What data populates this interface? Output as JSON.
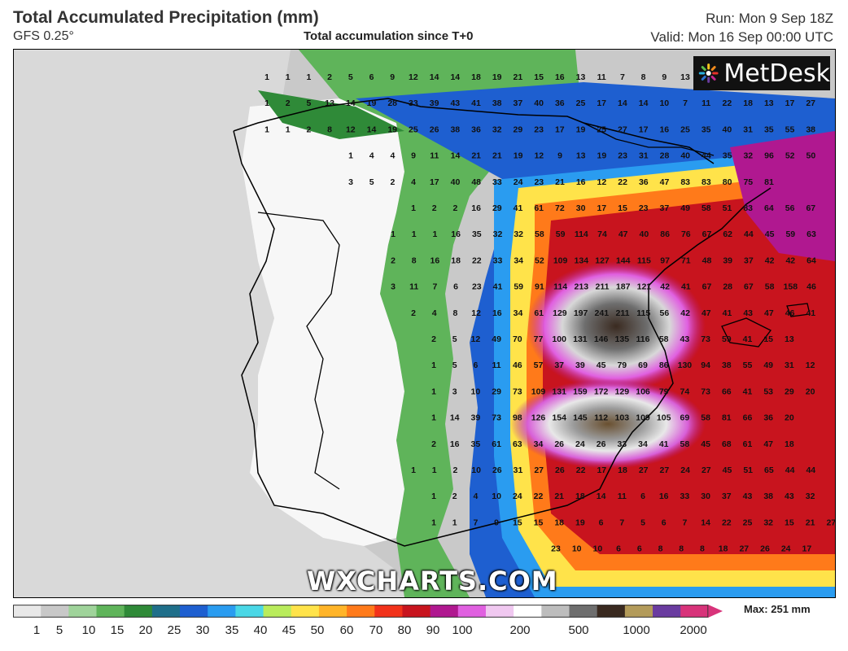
{
  "header": {
    "title": "Total Accumulated Precipitation (mm)",
    "model": "GFS 0.25°",
    "subtitle": "Total accumulation since T+0",
    "run": "Run: Mon 9 Sep 18Z",
    "valid": "Valid: Mon 16 Sep 00:00 UTC"
  },
  "logo": {
    "text": "MetDesk",
    "icon": "metdesk-logo-icon"
  },
  "watermark": "WXCHARTS.COM",
  "legend": {
    "labels": [
      "1",
      "5",
      "10",
      "15",
      "20",
      "25",
      "30",
      "35",
      "40",
      "45",
      "50",
      "60",
      "70",
      "80",
      "90",
      "100",
      "200",
      "500",
      "1000",
      "2000"
    ],
    "max_label": "Max: 251 mm",
    "colors": [
      "#e8e8e8",
      "#c8c8c8",
      "#9fd39a",
      "#5fb45a",
      "#2f8a38",
      "#1f6f8a",
      "#1e5fd0",
      "#2a9cf0",
      "#4ad7e6",
      "#b9ec5c",
      "#ffe34a",
      "#ffb428",
      "#ff7a1a",
      "#f2321a",
      "#c8141e",
      "#b01890",
      "#e060e0",
      "#f0c8f0",
      "#ffffff",
      "#bdbdbd",
      "#6e6e6e",
      "#3a2a20",
      "#b39b5a",
      "#6a3ca0",
      "#d8337a"
    ]
  },
  "values": [
    [
      1,
      1,
      1,
      2,
      5,
      6,
      9,
      12,
      14,
      14,
      18,
      19,
      21,
      15,
      16,
      13,
      11,
      7,
      8,
      9,
      13
    ],
    [
      1,
      2,
      5,
      13,
      14,
      19,
      28,
      33,
      39,
      43,
      41,
      38,
      37,
      40,
      36,
      25,
      17,
      14,
      14,
      10,
      7,
      11,
      22,
      18,
      13,
      17,
      27
    ],
    [
      1,
      1,
      2,
      8,
      12,
      14,
      19,
      25,
      26,
      38,
      36,
      32,
      29,
      23,
      17,
      19,
      25,
      27,
      17,
      16,
      25,
      35,
      40,
      31,
      35,
      55,
      38
    ],
    [
      1,
      4,
      4,
      9,
      11,
      14,
      21,
      21,
      19,
      12,
      9,
      13,
      19,
      23,
      31,
      28,
      40,
      44,
      35,
      32,
      96,
      52,
      50
    ],
    [
      3,
      5,
      2,
      4,
      17,
      40,
      48,
      33,
      24,
      23,
      21,
      16,
      12,
      22,
      36,
      47,
      83,
      83,
      80,
      75,
      81
    ],
    [
      1,
      2,
      2,
      16,
      29,
      41,
      61,
      72,
      30,
      17,
      15,
      23,
      37,
      49,
      58,
      51,
      83,
      64,
      56,
      67
    ],
    [
      1,
      1,
      1,
      16,
      35,
      32,
      32,
      58,
      59,
      114,
      74,
      47,
      40,
      86,
      76,
      67,
      62,
      44,
      45,
      59,
      63
    ],
    [
      2,
      8,
      16,
      18,
      22,
      33,
      34,
      52,
      109,
      134,
      127,
      144,
      115,
      97,
      71,
      48,
      39,
      37,
      42,
      42,
      64
    ],
    [
      3,
      11,
      7,
      6,
      23,
      41,
      59,
      91,
      114,
      213,
      211,
      187,
      121,
      42,
      41,
      67,
      28,
      67,
      58,
      158,
      46
    ],
    [
      2,
      4,
      8,
      12,
      16,
      34,
      61,
      129,
      197,
      241,
      211,
      115,
      56,
      42,
      47,
      41,
      43,
      47,
      46,
      41
    ],
    [
      2,
      5,
      12,
      49,
      70,
      77,
      100,
      131,
      146,
      135,
      116,
      58,
      43,
      73,
      59,
      41,
      15,
      13
    ],
    [
      1,
      5,
      6,
      11,
      46,
      57,
      37,
      39,
      45,
      79,
      69,
      86,
      130,
      94,
      38,
      55,
      49,
      31,
      12
    ],
    [
      1,
      3,
      10,
      29,
      73,
      109,
      131,
      159,
      172,
      129,
      106,
      79,
      74,
      73,
      66,
      41,
      53,
      29,
      20
    ],
    [
      1,
      14,
      39,
      73,
      98,
      126,
      154,
      145,
      112,
      103,
      109,
      105,
      69,
      58,
      81,
      66,
      36,
      20
    ],
    [
      2,
      16,
      35,
      61,
      63,
      34,
      26,
      24,
      26,
      33,
      34,
      41,
      58,
      45,
      68,
      61,
      47,
      18
    ],
    [
      1,
      1,
      2,
      10,
      26,
      31,
      27,
      26,
      22,
      17,
      18,
      27,
      27,
      24,
      27,
      45,
      51,
      65,
      44,
      44
    ],
    [
      1,
      2,
      4,
      10,
      24,
      22,
      21,
      18,
      14,
      11,
      6,
      16,
      33,
      30,
      37,
      43,
      38,
      43,
      32
    ],
    [
      1,
      1,
      7,
      9,
      15,
      15,
      18,
      19,
      6,
      7,
      5,
      6,
      7,
      14,
      22,
      25,
      32,
      15,
      21,
      27
    ],
    [
      23,
      10,
      10,
      6,
      6,
      8,
      8,
      8,
      18,
      27,
      26,
      24,
      17
    ]
  ]
}
